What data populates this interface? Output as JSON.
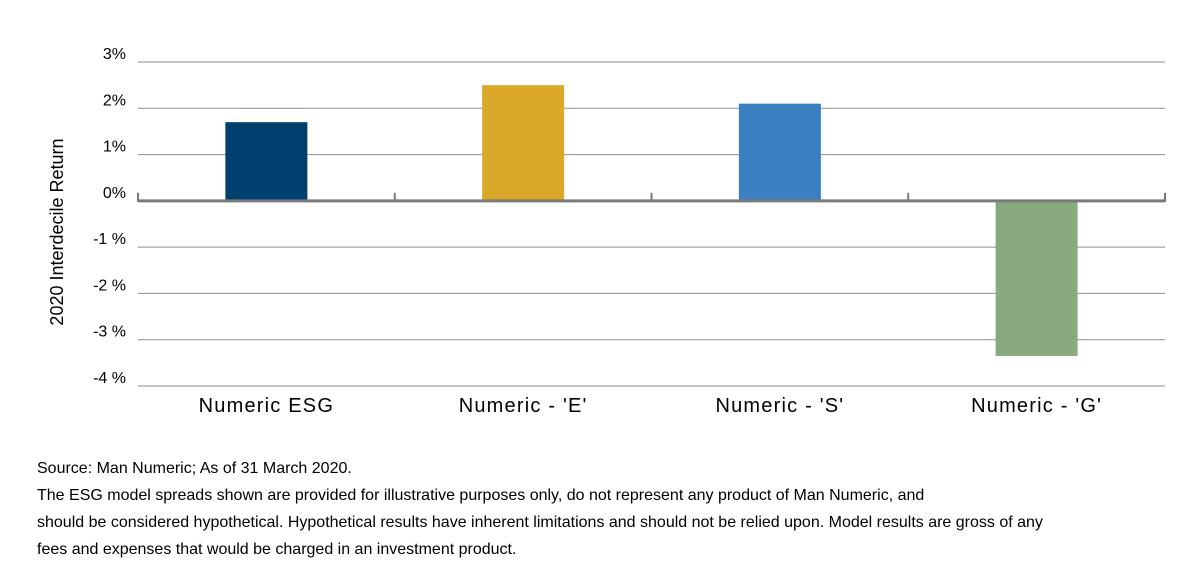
{
  "chart_data": {
    "type": "bar",
    "ylabel": "2020 Interdecile Return",
    "xlabel": "",
    "categories": [
      "Numeric ESG",
      "Numeric - 'E'",
      "Numeric - 'S'",
      "Numeric  - 'G'"
    ],
    "values": [
      1.7,
      2.5,
      2.1,
      -3.35
    ],
    "unit": "%",
    "ylim": [
      -4,
      3
    ],
    "yticks": [
      3,
      2,
      1,
      0,
      -1,
      -2,
      -3,
      -4
    ],
    "ytick_labels": [
      "3%",
      "2%",
      "1%",
      "0%",
      "-1 %",
      "-2 %",
      "-3 %",
      "-4 %"
    ],
    "bar_colors": [
      "#003f6e",
      "#dba92a",
      "#3a80c0",
      "#89a97e"
    ],
    "grid": true,
    "legend": "none"
  },
  "footnotes": {
    "source": "Source: Man Numeric; As of 31 March 2020.",
    "disclaimer_line1": "The ESG model spreads shown are provided for illustrative purposes only, do not represent any product of Man Numeric, and",
    "disclaimer_line2": "should be considered hypothetical. Hypothetical results have inherent limitations and should not be relied upon. Model results are gross of any",
    "disclaimer_line3": "fees and expenses that would be charged in an investment product."
  }
}
